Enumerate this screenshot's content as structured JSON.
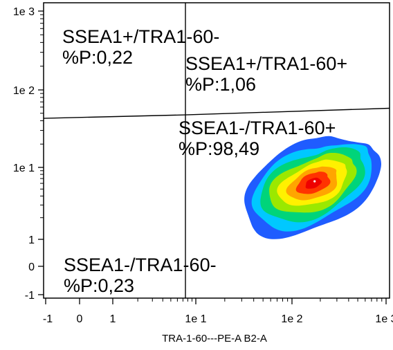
{
  "chart_data": {
    "type": "density",
    "xlabel": "TRA-1-60---PE-A B2-A",
    "ylabel": "",
    "x_scale": "biexponential",
    "y_scale": "biexponential",
    "x_ticks": [
      {
        "label": "-1",
        "value": -1
      },
      {
        "label": "0",
        "value": 0
      },
      {
        "label": "1",
        "value": 1
      },
      {
        "label": "1e 1",
        "value": 10
      },
      {
        "label": "1e 2",
        "value": 100
      },
      {
        "label": "1e 3",
        "value": 1000
      }
    ],
    "y_ticks": [
      {
        "label": "-1",
        "value": -1
      },
      {
        "label": "0",
        "value": 0
      },
      {
        "label": "1",
        "value": 1
      },
      {
        "label": "1e 1",
        "value": 10
      },
      {
        "label": "1e 2",
        "value": 100
      },
      {
        "label": "1e 3",
        "value": 1000
      }
    ],
    "quadrant_gates": {
      "vertical_x": 7.5,
      "horizontal_left_y": 43,
      "horizontal_right_y_at_x1000": 58
    },
    "quadrants": [
      {
        "name": "SSEA1+/TRA1-60-",
        "stat": "%P:0,22",
        "position": "top-left"
      },
      {
        "name": "SSEA1+/TRA1-60+",
        "stat": "%P:1,06",
        "position": "top-right"
      },
      {
        "name": "SSEA1-/TRA1-60+",
        "stat": "%P:98,49",
        "position": "bottom-right"
      },
      {
        "name": "SSEA1-/TRA1-60-",
        "stat": "%P:0,23",
        "position": "bottom-left"
      }
    ],
    "population": {
      "center_x": 180,
      "center_y": 7,
      "density_colors": [
        "#1f5cff",
        "#00c8ff",
        "#00d47a",
        "#9be800",
        "#fff100",
        "#ffa500",
        "#ff3300",
        "#ee0000"
      ]
    }
  }
}
